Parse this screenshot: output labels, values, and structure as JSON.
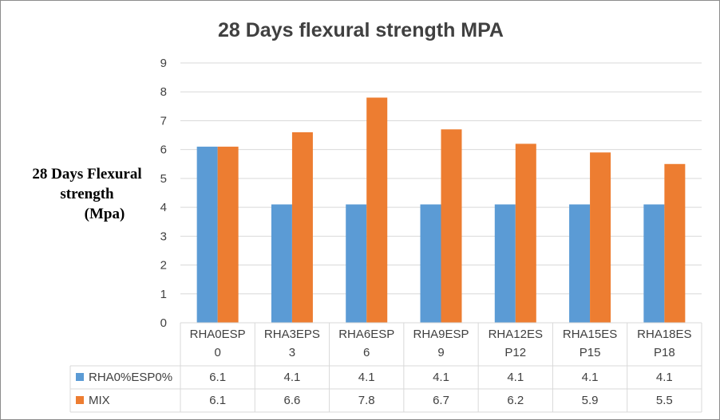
{
  "chart_data": {
    "type": "bar",
    "title": "28 Days flexural strength MPA",
    "ylabel_lines": [
      "28 Days Flexural",
      "strength",
      "(Mpa)"
    ],
    "categories": [
      [
        "RHA0ESP",
        "0"
      ],
      [
        "RHA3EPS",
        "3"
      ],
      [
        "RHA6ESP",
        "6"
      ],
      [
        "RHA9ESP",
        "9"
      ],
      [
        "RHA12ES",
        "P12"
      ],
      [
        "RHA15ES",
        "P15"
      ],
      [
        "RHA18ES",
        "P18"
      ]
    ],
    "series": [
      {
        "name": "RHA0%ESP0%",
        "color": "#5b9bd5",
        "values": [
          6.1,
          4.1,
          4.1,
          4.1,
          4.1,
          4.1,
          4.1
        ]
      },
      {
        "name": "MIX",
        "color": "#ed7d31",
        "values": [
          6.1,
          6.6,
          7.8,
          6.7,
          6.2,
          5.9,
          5.5
        ]
      }
    ],
    "ylim": [
      0,
      9
    ],
    "yticks": [
      0,
      1,
      2,
      3,
      4,
      5,
      6,
      7,
      8,
      9
    ],
    "grid": true,
    "legend": "data-table",
    "data_table": true
  }
}
